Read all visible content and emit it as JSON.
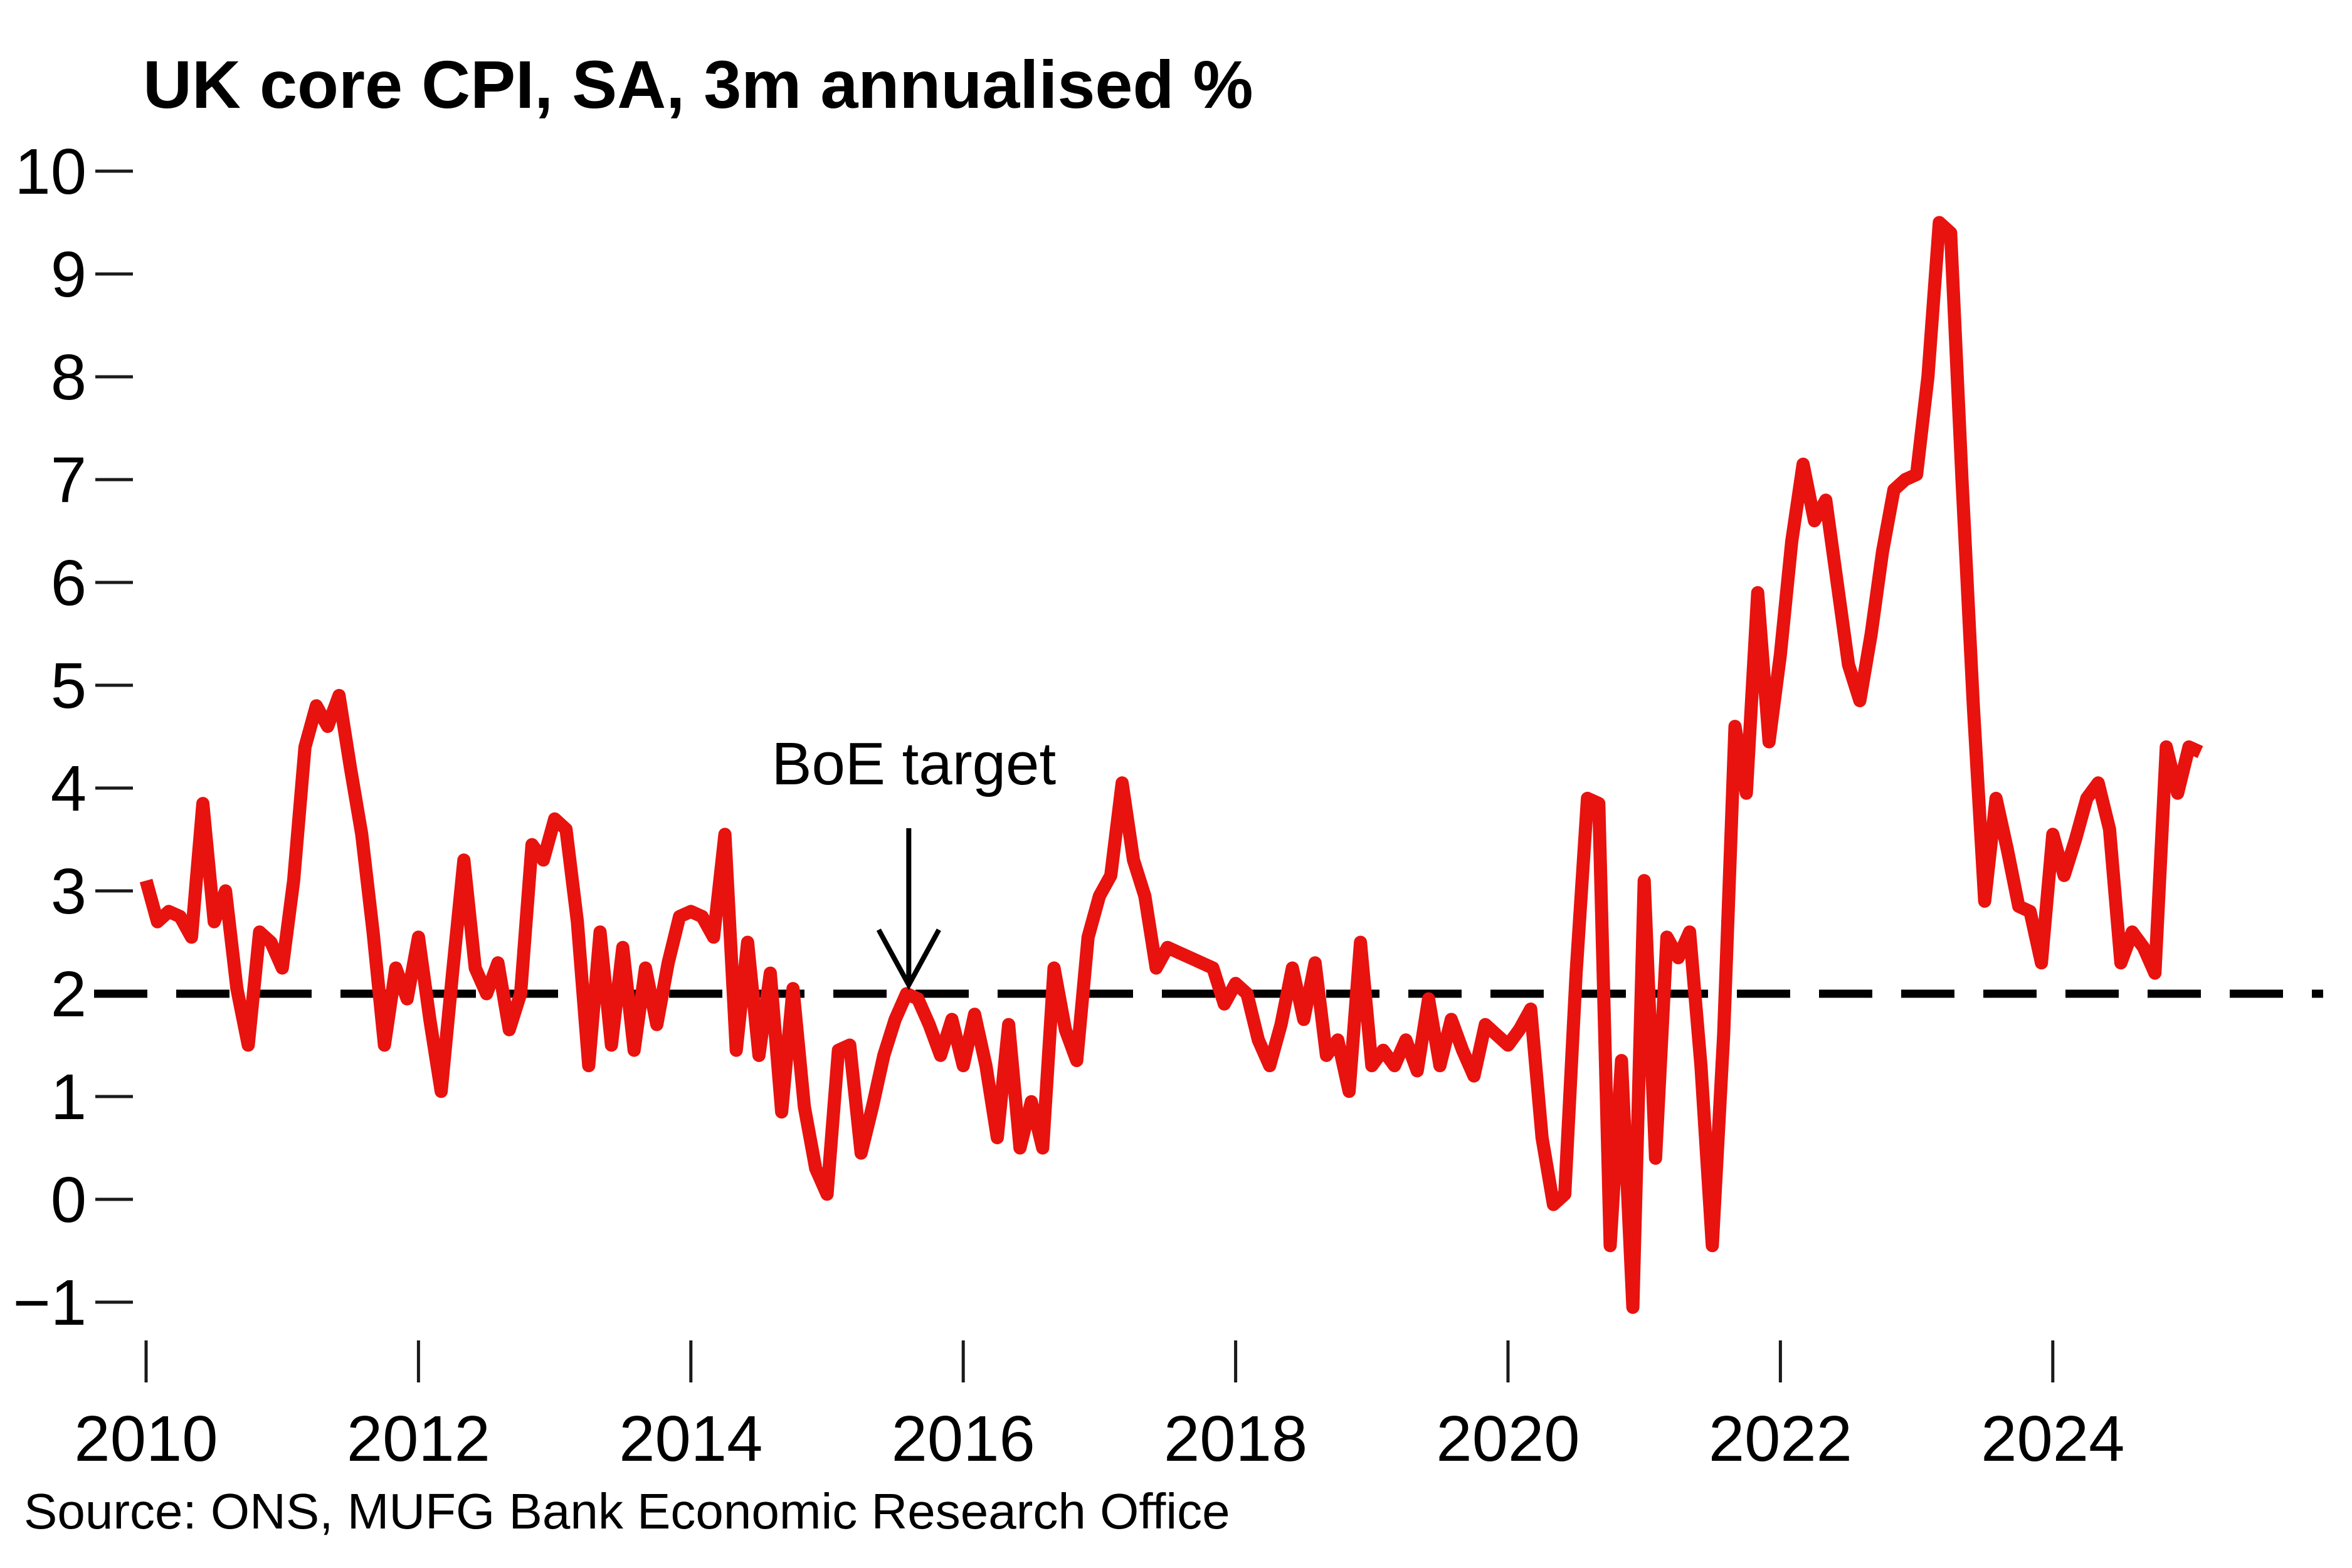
{
  "title": "UK core CPI, SA, 3m annualised %",
  "source": "Source: ONS, MUFG Bank Economic Research Office",
  "annotation": {
    "label": "BoE target",
    "points_to": {
      "year": 2015.6,
      "value": 2
    }
  },
  "colors": {
    "series": "#e8120f",
    "target_line": "#000000",
    "text": "#000000",
    "tick": "#1a1a1a",
    "background": "#ffffff"
  },
  "chart_data": {
    "type": "line",
    "title": "UK core CPI, SA, 3m annualised %",
    "xlabel": "",
    "ylabel": "",
    "ylim": [
      -1,
      10
    ],
    "grid": false,
    "legend": false,
    "y_ticks": [
      10,
      9,
      8,
      7,
      6,
      5,
      4,
      3,
      2,
      1,
      0,
      -1
    ],
    "x_ticks": [
      2010,
      2012,
      2014,
      2016,
      2018,
      2020,
      2022,
      2024
    ],
    "target_line": {
      "label": "BoE target",
      "value": 2
    },
    "series": [
      {
        "name": "UK core CPI, SA, 3m annualised %",
        "color": "#e8120f",
        "start": "2010-01",
        "end": "2025-02",
        "frequency": "monthly",
        "values": [
          3.1,
          2.7,
          2.8,
          2.75,
          2.55,
          3.85,
          2.7,
          3.0,
          2.05,
          1.5,
          2.6,
          2.5,
          2.25,
          3.1,
          4.4,
          4.8,
          4.6,
          4.9,
          4.2,
          3.55,
          2.6,
          1.5,
          2.25,
          1.95,
          2.55,
          1.75,
          1.05,
          2.2,
          3.3,
          2.25,
          2.0,
          2.3,
          1.65,
          2.0,
          3.45,
          3.3,
          3.7,
          3.6,
          2.7,
          1.3,
          2.6,
          1.5,
          2.45,
          1.45,
          2.25,
          1.7,
          2.3,
          2.75,
          2.8,
          2.75,
          2.55,
          3.55,
          1.45,
          2.5,
          1.4,
          2.2,
          0.85,
          2.05,
          0.9,
          0.3,
          0.05,
          1.45,
          1.5,
          0.45,
          0.9,
          1.4,
          1.75,
          2.0,
          1.95,
          1.7,
          1.4,
          1.75,
          1.3,
          1.8,
          1.3,
          0.6,
          1.7,
          0.5,
          0.95,
          0.5,
          2.25,
          1.65,
          1.35,
          2.55,
          2.95,
          3.15,
          4.05,
          3.3,
          2.95,
          2.25,
          2.45,
          2.4,
          2.35,
          2.3,
          2.25,
          1.9,
          2.1,
          2.0,
          1.55,
          1.3,
          1.7,
          2.25,
          1.75,
          2.3,
          1.4,
          1.55,
          1.05,
          2.5,
          1.3,
          1.45,
          1.3,
          1.55,
          1.25,
          1.95,
          1.3,
          1.75,
          1.45,
          1.2,
          1.7,
          1.6,
          1.5,
          1.65,
          1.85,
          0.6,
          -0.05,
          0.05,
          2.2,
          3.9,
          3.85,
          -0.45,
          1.35,
          -1.05,
          3.1,
          0.4,
          2.55,
          2.35,
          2.6,
          1.3,
          -0.45,
          1.6,
          4.6,
          3.95,
          5.9,
          4.45,
          5.3,
          6.4,
          7.15,
          6.6,
          6.8,
          6.0,
          5.2,
          4.85,
          5.5,
          6.3,
          6.9,
          7.0,
          7.05,
          8.0,
          9.5,
          9.4,
          7.0,
          4.8,
          2.9,
          3.9,
          3.4,
          2.85,
          2.8,
          2.3,
          3.55,
          3.15,
          3.5,
          3.9,
          4.05,
          3.6,
          2.3,
          2.6,
          2.45,
          2.2,
          4.4,
          3.95,
          4.4,
          4.35
        ]
      }
    ]
  }
}
